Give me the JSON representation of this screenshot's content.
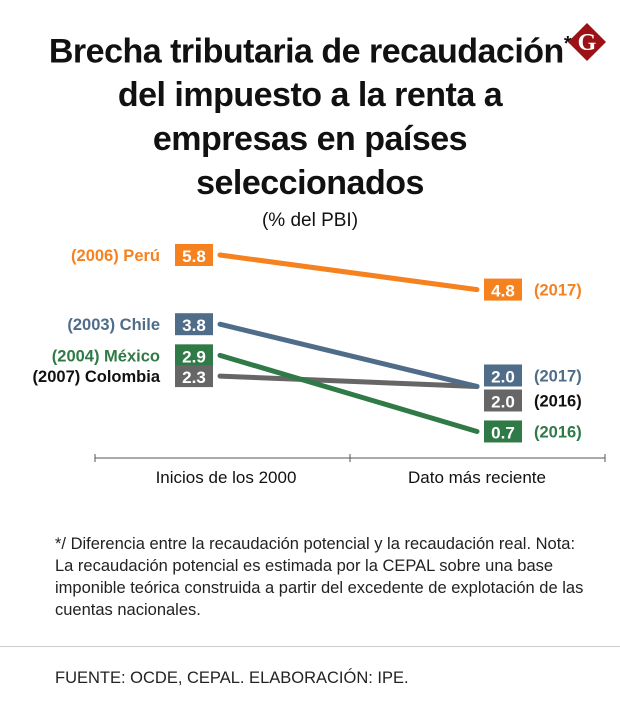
{
  "title_main": "Brecha tributaria de recaudación",
  "title_marker": "*",
  "title_rest": " del impuesto a la renta a empresas en países seleccionados",
  "logo_letter": "G",
  "chart_data": {
    "type": "line",
    "subtitle": "(% del PBI)",
    "categories": [
      "Inicios de los 2000",
      "Dato más reciente"
    ],
    "series": [
      {
        "name": "Perú",
        "start_label": "(2006) Perú",
        "end_label": "(2017)",
        "values": [
          5.8,
          4.8
        ],
        "value_labels": [
          "5.8",
          "4.8"
        ],
        "color": "#f5821f",
        "label_color": "#f5821f"
      },
      {
        "name": "Chile",
        "start_label": "(2003) Chile",
        "end_label": "(2017)",
        "values": [
          3.8,
          2.0
        ],
        "value_labels": [
          "3.8",
          "2.0"
        ],
        "color": "#4f6d89",
        "label_color": "#4f6d89"
      },
      {
        "name": "México",
        "start_label": "(2004) México",
        "end_label": "(2016)",
        "values": [
          2.9,
          0.7
        ],
        "value_labels": [
          "2.9",
          "0.7"
        ],
        "color": "#2f7a46",
        "label_color": "#2f7a46"
      },
      {
        "name": "Colombia",
        "start_label": "(2007) Colombia",
        "end_label": "(2016)",
        "values": [
          2.3,
          2.0
        ],
        "value_labels": [
          "2.3",
          "2.0"
        ],
        "color": "#666666",
        "label_color": "#111111"
      }
    ]
  },
  "footnote": "*/ Diferencia entre la recaudación potencial y la recaudación real. Nota: La recaudación potencial es estimada por la CEPAL sobre una base imponible teórica construida a partir del excedente de explotación de las cuentas nacionales.",
  "source": "FUENTE: OCDE, CEPAL. ELABORACIÓN: IPE."
}
